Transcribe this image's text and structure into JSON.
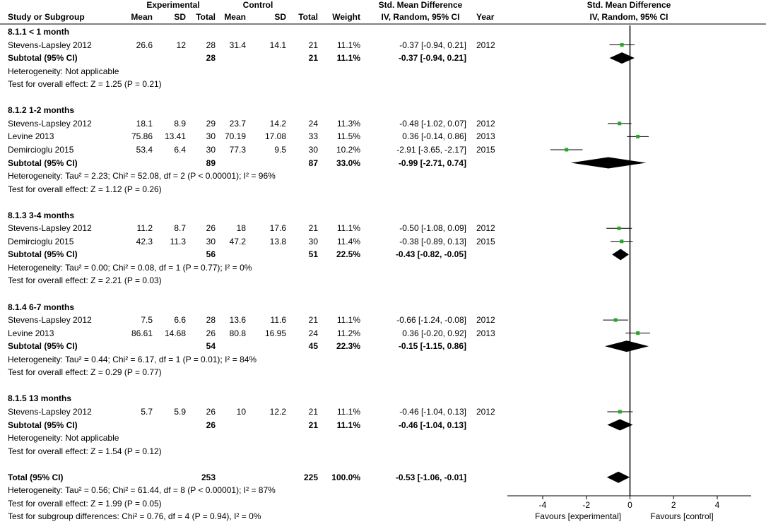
{
  "header": {
    "group_experimental": "Experimental",
    "group_control": "Control",
    "study": "Study or Subgroup",
    "mean": "Mean",
    "sd": "SD",
    "total": "Total",
    "mean2": "Mean",
    "sd2": "SD",
    "total2": "Total",
    "weight": "Weight",
    "smd_top": "Std. Mean Difference",
    "smd_sub": "IV, Random, 95% CI",
    "year": "Year",
    "plot_top": "Std. Mean Difference",
    "plot_sub": "IV, Random, 95% CI"
  },
  "rows": [
    {
      "type": "group",
      "label": "8.1.1 < 1 month"
    },
    {
      "type": "study",
      "name": "Stevens-Lapsley 2012",
      "m1": "26.6",
      "sd1": "12",
      "n1": "28",
      "m2": "31.4",
      "sd2": "14.1",
      "n2": "21",
      "weight": "11.1%",
      "ci": "-0.37 [-0.94, 0.21]",
      "year": "2012"
    },
    {
      "type": "subtotal",
      "name": "Subtotal (95% CI)",
      "n1": "28",
      "n2": "21",
      "weight": "11.1%",
      "ci": "-0.37 [-0.94, 0.21]"
    },
    {
      "type": "note",
      "text": "Heterogeneity: Not applicable"
    },
    {
      "type": "note",
      "text": "Test for overall effect: Z = 1.25 (P = 0.21)"
    },
    {
      "type": "blank"
    },
    {
      "type": "group",
      "label": "8.1.2 1-2 months"
    },
    {
      "type": "study",
      "name": "Stevens-Lapsley 2012",
      "m1": "18.1",
      "sd1": "8.9",
      "n1": "29",
      "m2": "23.7",
      "sd2": "14.2",
      "n2": "24",
      "weight": "11.3%",
      "ci": "-0.48 [-1.02, 0.07]",
      "year": "2012"
    },
    {
      "type": "study",
      "name": "Levine 2013",
      "m1": "75.86",
      "sd1": "13.41",
      "n1": "30",
      "m2": "70.19",
      "sd2": "17.08",
      "n2": "33",
      "weight": "11.5%",
      "ci": "0.36 [-0.14, 0.86]",
      "year": "2013"
    },
    {
      "type": "study",
      "name": "Demircioglu 2015",
      "m1": "53.4",
      "sd1": "6.4",
      "n1": "30",
      "m2": "77.3",
      "sd2": "9.5",
      "n2": "30",
      "weight": "10.2%",
      "ci": "-2.91 [-3.65, -2.17]",
      "year": "2015"
    },
    {
      "type": "subtotal",
      "name": "Subtotal (95% CI)",
      "n1": "89",
      "n2": "87",
      "weight": "33.0%",
      "ci": "-0.99 [-2.71, 0.74]"
    },
    {
      "type": "note",
      "text": "Heterogeneity: Tau² = 2.23; Chi² = 52.08, df = 2 (P < 0.00001); I² = 96%"
    },
    {
      "type": "note",
      "text": "Test for overall effect: Z = 1.12 (P = 0.26)"
    },
    {
      "type": "blank"
    },
    {
      "type": "group",
      "label": "8.1.3 3-4 months"
    },
    {
      "type": "study",
      "name": "Stevens-Lapsley 2012",
      "m1": "11.2",
      "sd1": "8.7",
      "n1": "26",
      "m2": "18",
      "sd2": "17.6",
      "n2": "21",
      "weight": "11.1%",
      "ci": "-0.50 [-1.08, 0.09]",
      "year": "2012"
    },
    {
      "type": "study",
      "name": "Demircioglu 2015",
      "m1": "42.3",
      "sd1": "11.3",
      "n1": "30",
      "m2": "47.2",
      "sd2": "13.8",
      "n2": "30",
      "weight": "11.4%",
      "ci": "-0.38 [-0.89, 0.13]",
      "year": "2015"
    },
    {
      "type": "subtotal",
      "name": "Subtotal (95% CI)",
      "n1": "56",
      "n2": "51",
      "weight": "22.5%",
      "ci": "-0.43 [-0.82, -0.05]"
    },
    {
      "type": "note",
      "text": "Heterogeneity: Tau² = 0.00; Chi² = 0.08, df = 1 (P = 0.77); I² = 0%"
    },
    {
      "type": "note",
      "text": "Test for overall effect: Z = 2.21 (P = 0.03)"
    },
    {
      "type": "blank"
    },
    {
      "type": "group",
      "label": "8.1.4 6-7 months"
    },
    {
      "type": "study",
      "name": "Stevens-Lapsley 2012",
      "m1": "7.5",
      "sd1": "6.6",
      "n1": "28",
      "m2": "13.6",
      "sd2": "11.6",
      "n2": "21",
      "weight": "11.1%",
      "ci": "-0.66 [-1.24, -0.08]",
      "year": "2012"
    },
    {
      "type": "study",
      "name": "Levine 2013",
      "m1": "86.61",
      "sd1": "14.68",
      "n1": "26",
      "m2": "80.8",
      "sd2": "16.95",
      "n2": "24",
      "weight": "11.2%",
      "ci": "0.36 [-0.20, 0.92]",
      "year": "2013"
    },
    {
      "type": "subtotal",
      "name": "Subtotal (95% CI)",
      "n1": "54",
      "n2": "45",
      "weight": "22.3%",
      "ci": "-0.15 [-1.15, 0.86]"
    },
    {
      "type": "note",
      "text": "Heterogeneity: Tau² = 0.44; Chi² = 6.17, df = 1 (P = 0.01); I² = 84%"
    },
    {
      "type": "note",
      "text": "Test for overall effect: Z = 0.29 (P = 0.77)"
    },
    {
      "type": "blank"
    },
    {
      "type": "group",
      "label": "8.1.5 13 months"
    },
    {
      "type": "study",
      "name": "Stevens-Lapsley 2012",
      "m1": "5.7",
      "sd1": "5.9",
      "n1": "26",
      "m2": "10",
      "sd2": "12.2",
      "n2": "21",
      "weight": "11.1%",
      "ci": "-0.46 [-1.04, 0.13]",
      "year": "2012"
    },
    {
      "type": "subtotal",
      "name": "Subtotal (95% CI)",
      "n1": "26",
      "n2": "21",
      "weight": "11.1%",
      "ci": "-0.46 [-1.04, 0.13]"
    },
    {
      "type": "note",
      "text": "Heterogeneity: Not applicable"
    },
    {
      "type": "note",
      "text": "Test for overall effect: Z = 1.54 (P = 0.12)"
    },
    {
      "type": "blank"
    },
    {
      "type": "total",
      "name": "Total (95% CI)",
      "n1": "253",
      "n2": "225",
      "weight": "100.0%",
      "ci": "-0.53 [-1.06, -0.01]"
    },
    {
      "type": "note",
      "text": "Heterogeneity: Tau² = 0.56; Chi² = 61.44, df = 8 (P < 0.00001); I² = 87%"
    },
    {
      "type": "note",
      "text": "Test for overall effect: Z = 1.99 (P = 0.05)"
    },
    {
      "type": "note",
      "text": "Test for subgroup differences: Chi² = 0.76, df = 4 (P = 0.94), I² = 0%"
    }
  ],
  "chart_data": {
    "type": "forest",
    "xlim": [
      -4,
      4
    ],
    "ticks": [
      "-4",
      "-2",
      "0",
      "2",
      "4"
    ],
    "tick_values": [
      -4,
      -2,
      0,
      2,
      4
    ],
    "favours_left": "Favours [experimental]",
    "favours_right": "Favours [control]",
    "colors": {
      "point": "#22aa22",
      "diamond": "#000000",
      "line": "#000000"
    },
    "estimates": [
      {
        "row": 1,
        "kind": "study",
        "est": -0.37,
        "lo": -0.94,
        "hi": 0.21
      },
      {
        "row": 2,
        "kind": "diamond",
        "est": -0.37,
        "lo": -0.94,
        "hi": 0.21
      },
      {
        "row": 7,
        "kind": "study",
        "est": -0.48,
        "lo": -1.02,
        "hi": 0.07
      },
      {
        "row": 8,
        "kind": "study",
        "est": 0.36,
        "lo": -0.14,
        "hi": 0.86
      },
      {
        "row": 9,
        "kind": "study",
        "est": -2.91,
        "lo": -3.65,
        "hi": -2.17
      },
      {
        "row": 10,
        "kind": "diamond",
        "est": -0.99,
        "lo": -2.71,
        "hi": 0.74
      },
      {
        "row": 15,
        "kind": "study",
        "est": -0.5,
        "lo": -1.08,
        "hi": 0.09
      },
      {
        "row": 16,
        "kind": "study",
        "est": -0.38,
        "lo": -0.89,
        "hi": 0.13
      },
      {
        "row": 17,
        "kind": "diamond",
        "est": -0.43,
        "lo": -0.82,
        "hi": -0.05
      },
      {
        "row": 22,
        "kind": "study",
        "est": -0.66,
        "lo": -1.24,
        "hi": -0.08
      },
      {
        "row": 23,
        "kind": "study",
        "est": 0.36,
        "lo": -0.2,
        "hi": 0.92
      },
      {
        "row": 24,
        "kind": "diamond",
        "est": -0.15,
        "lo": -1.15,
        "hi": 0.86
      },
      {
        "row": 29,
        "kind": "study",
        "est": -0.46,
        "lo": -1.04,
        "hi": 0.13
      },
      {
        "row": 30,
        "kind": "diamond",
        "est": -0.46,
        "lo": -1.04,
        "hi": 0.13
      },
      {
        "row": 34,
        "kind": "diamond",
        "est": -0.53,
        "lo": -1.06,
        "hi": -0.01
      }
    ]
  }
}
